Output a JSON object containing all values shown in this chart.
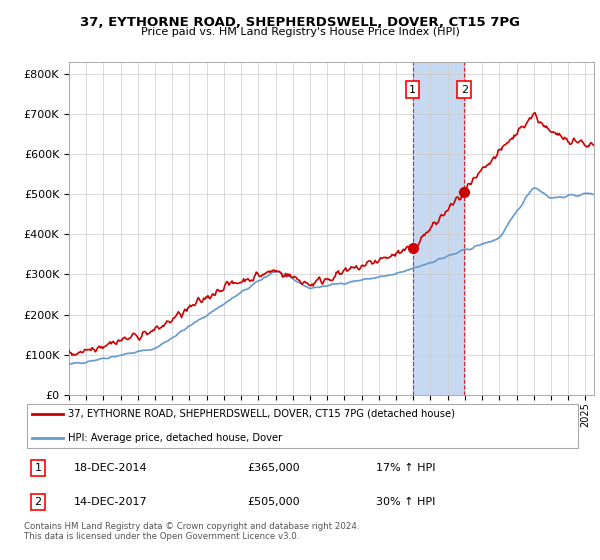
{
  "title": "37, EYTHORNE ROAD, SHEPHERDSWELL, DOVER, CT15 7PG",
  "subtitle": "Price paid vs. HM Land Registry's House Price Index (HPI)",
  "ylabel_ticks": [
    "£0",
    "£100K",
    "£200K",
    "£300K",
    "£400K",
    "£500K",
    "£600K",
    "£700K",
    "£800K"
  ],
  "ytick_values": [
    0,
    100000,
    200000,
    300000,
    400000,
    500000,
    600000,
    700000,
    800000
  ],
  "ylim": [
    0,
    830000
  ],
  "xlim_start": 1995.0,
  "xlim_end": 2025.5,
  "transaction1": {
    "date_num": 2014.96,
    "price": 365000,
    "label": "1",
    "date_str": "18-DEC-2014",
    "hpi_pct": "17% ↑ HPI"
  },
  "transaction2": {
    "date_num": 2017.96,
    "price": 505000,
    "label": "2",
    "date_str": "14-DEC-2017",
    "hpi_pct": "30% ↑ HPI"
  },
  "highlight_color": "#c6d9f1",
  "line_red": "#cc0000",
  "line_blue": "#6699cc",
  "legend_label_red": "37, EYTHORNE ROAD, SHEPHERDSWELL, DOVER, CT15 7PG (detached house)",
  "legend_label_blue": "HPI: Average price, detached house, Dover",
  "footnote": "Contains HM Land Registry data © Crown copyright and database right 2024.\nThis data is licensed under the Open Government Licence v3.0.",
  "xtick_years": [
    1995,
    1996,
    1997,
    1998,
    1999,
    2000,
    2001,
    2002,
    2003,
    2004,
    2005,
    2006,
    2007,
    2008,
    2009,
    2010,
    2011,
    2012,
    2013,
    2014,
    2015,
    2016,
    2017,
    2018,
    2019,
    2020,
    2021,
    2022,
    2023,
    2024,
    2025
  ]
}
